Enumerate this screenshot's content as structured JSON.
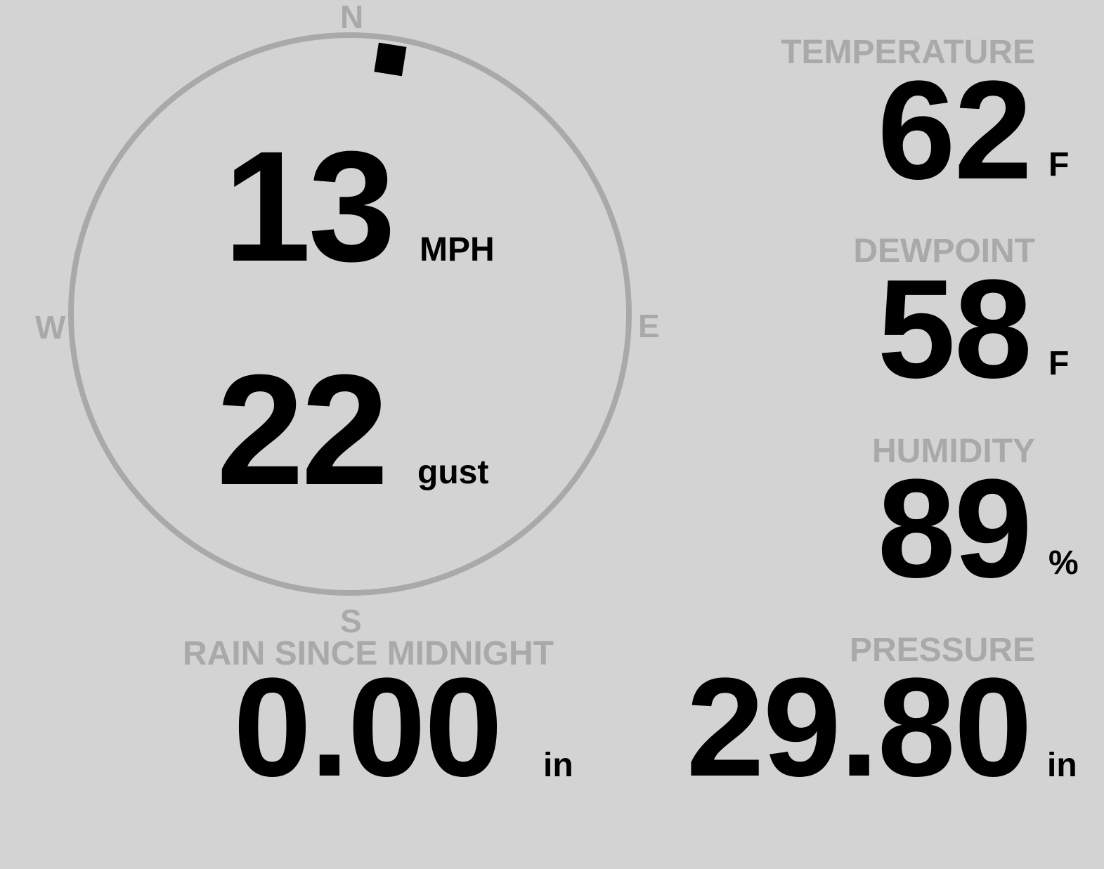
{
  "colors": {
    "background": "#d3d3d3",
    "label": "#a9a9a9",
    "value": "#000000",
    "ring": "#a9a9a9",
    "marker": "#000000"
  },
  "wind": {
    "direction_deg": 9,
    "speed": "13",
    "speed_unit": "MPH",
    "gust": "22",
    "gust_unit": "gust",
    "compass": {
      "n": "N",
      "s": "S",
      "e": "E",
      "w": "W"
    }
  },
  "temperature": {
    "label": "TEMPERATURE",
    "value": "62",
    "unit": "F"
  },
  "dewpoint": {
    "label": "DEWPOINT",
    "value": "58",
    "unit": "F"
  },
  "humidity": {
    "label": "HUMIDITY",
    "value": "89",
    "unit": "%"
  },
  "pressure": {
    "label": "PRESSURE",
    "value": "29.80",
    "unit": "in"
  },
  "rain": {
    "label": "RAIN SINCE MIDNIGHT",
    "value": "0.00",
    "unit": "in"
  }
}
